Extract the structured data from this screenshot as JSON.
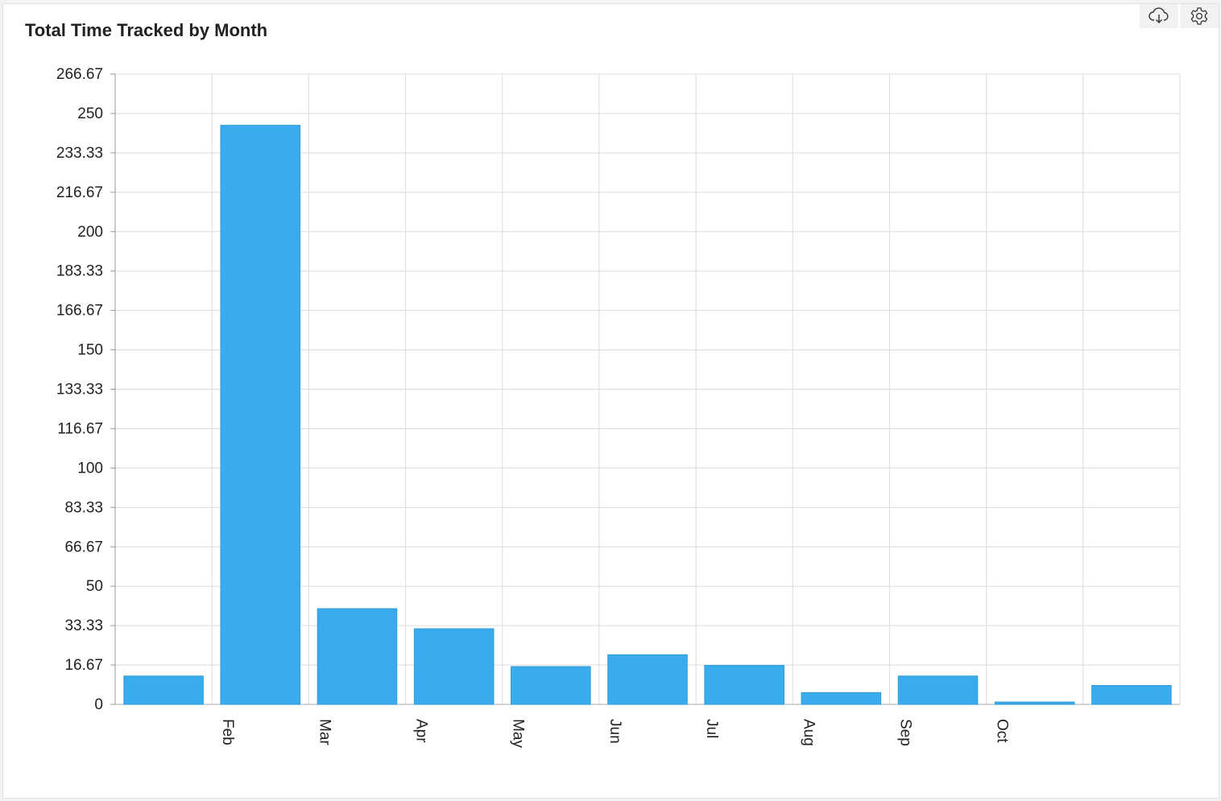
{
  "toolbar": {
    "download_icon": "cloud-download-icon",
    "settings_icon": "gear-icon"
  },
  "chart_data": {
    "type": "bar",
    "title": "Total Time Tracked by Month",
    "xlabel": "",
    "ylabel": "",
    "categories": [
      "",
      "Feb",
      "Mar",
      "Apr",
      "May",
      "Jun",
      "Jul",
      "Aug",
      "Sep",
      "Oct",
      ""
    ],
    "values": [
      12,
      245,
      40.5,
      32,
      16,
      21,
      16.5,
      5,
      12,
      1,
      8
    ],
    "ylim": [
      0,
      266.67
    ],
    "yticks": [
      "0",
      "16.67",
      "33.33",
      "50",
      "66.67",
      "83.33",
      "100",
      "116.67",
      "133.33",
      "150",
      "166.67",
      "183.33",
      "200",
      "216.67",
      "233.33",
      "250",
      "266.67"
    ],
    "grid": true,
    "bar_color": "#3aaced",
    "grid_color": "#dcdcdc",
    "legend": "none"
  }
}
